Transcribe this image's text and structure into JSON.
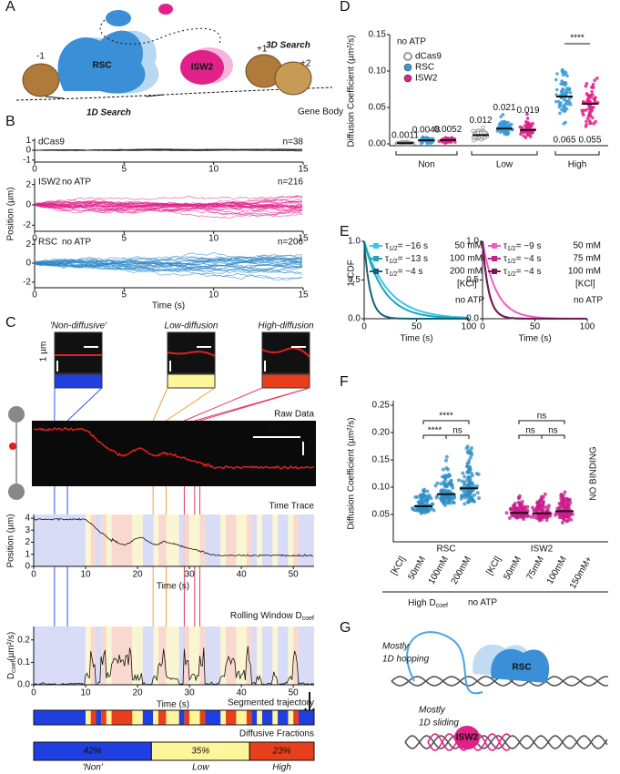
{
  "panel_labels": [
    "A",
    "B",
    "C",
    "D",
    "E",
    "F",
    "G"
  ],
  "A": {
    "search_3d": "3D Search",
    "search_1d": "1D Search",
    "rsc": "RSC",
    "isw2": "ISW2",
    "nuc_minus1": "-1",
    "nuc_plus1": "+1",
    "nuc_plus2": "+2",
    "gene_body": "Gene Body"
  },
  "B": {
    "x_label": "Time (s)",
    "y_label": "Position (µm)",
    "xlim": [
      0,
      15
    ],
    "xticks": [
      0,
      5,
      10,
      15
    ],
    "tracks": [
      {
        "name": "dCas9",
        "n": "n=38",
        "color": "#111111",
        "ylim": [
          -1.2,
          1.2
        ],
        "yticks": [
          -1,
          0,
          1
        ]
      },
      {
        "name": "ISW2",
        "condition": "no ATP",
        "n": "n=216",
        "color": "#e0218a",
        "ylim": [
          -2.6,
          2.6
        ],
        "yticks": [
          -2,
          0,
          2
        ]
      },
      {
        "name": "RSC",
        "condition": "no ATP",
        "n": "n=206",
        "color": "#2b86c8",
        "ylim": [
          -2.6,
          2.6
        ],
        "yticks": [
          -2,
          0,
          2
        ]
      }
    ]
  },
  "C": {
    "insets": [
      {
        "title": "'Non-diffusive'",
        "scale": "1 sec",
        "color": "#1f3fe0"
      },
      {
        "title": "Low-diffusion",
        "scale": "1 sec",
        "color": "#fff59a"
      },
      {
        "title": "High-diffusion",
        "scale": "1 sec",
        "color": "#e8401c"
      }
    ],
    "inset_y_scale": "1 µm",
    "raw_data": "Raw Data",
    "raw_time_scale": "10 s",
    "raw_pos_scale": "1 µm",
    "time_trace": {
      "title": "Time Trace",
      "y_label": "Position (µm)",
      "x_label": "Time (s)",
      "ylim": [
        0,
        4.3
      ],
      "yticks": [
        0,
        1,
        2,
        3,
        4
      ],
      "xlim": [
        0,
        54
      ],
      "xticks": [
        0,
        10,
        20,
        30,
        40,
        50
      ]
    },
    "rolling": {
      "title": "Rolling Window D",
      "title_sub": "coef",
      "y_label": "D",
      "y_label_sub": "coef",
      "y_label_unit": "(µm²/s)",
      "x_label": "Time (s)",
      "ylim": [
        0,
        0.26
      ],
      "yticks": [
        {
          "value": 0,
          "label": "0.0"
        },
        {
          "value": 0.1,
          "label": "0.1"
        },
        {
          "value": 0.2,
          "label": "0.2"
        }
      ],
      "xlim": [
        0,
        54
      ],
      "xticks": [
        0,
        10,
        20,
        30,
        40,
        50
      ]
    },
    "segmented": "Segmented trajectory",
    "fractions_title": "Diffusive Fractions",
    "fractions": [
      {
        "name": "'Non'",
        "value": 42,
        "value_label": "42%",
        "color": "#1f3fe0"
      },
      {
        "name": "Low",
        "value": 35,
        "value_label": "35%",
        "color": "#fff59a"
      },
      {
        "name": "High",
        "value": 23,
        "value_label": "23%",
        "color": "#e8401c"
      }
    ]
  },
  "D": {
    "no_atp": "no ATP",
    "y_label": "Diffusion Coefficient (µm²/s)",
    "ylim": [
      0,
      0.15
    ],
    "yticks": [
      {
        "value": 0,
        "label": "0.00"
      },
      {
        "value": 0.05,
        "label": "0.05"
      },
      {
        "value": 0.1,
        "label": "0.10"
      },
      {
        "value": 0.15,
        "label": "0.15"
      }
    ],
    "legend": [
      {
        "name": "dCas9",
        "color": "#9a9a9a"
      },
      {
        "name": "RSC",
        "color": "#3a9ad9"
      },
      {
        "name": "ISW2",
        "color": "#e0218a"
      }
    ],
    "groups": [
      {
        "name": "Non",
        "series": [
          0,
          1,
          2
        ],
        "medians": [
          0.0011,
          0.0048,
          0.0052
        ]
      },
      {
        "name": "Low",
        "series": [
          0,
          1,
          2
        ],
        "medians": [
          0.012,
          0.021,
          0.019
        ]
      },
      {
        "name": "High",
        "series": [
          1,
          2
        ],
        "medians": [
          0.065,
          0.055
        ]
      }
    ],
    "significance": "****"
  },
  "E": {
    "y_label": "1-CDF",
    "x_label": "Time (s)",
    "xlim": [
      0,
      100
    ],
    "xticks": [
      0,
      50,
      100
    ],
    "ylim": [
      0,
      1
    ],
    "yticks": [
      {
        "value": 0,
        "label": "0.0"
      },
      {
        "value": 0.5,
        "label": "0.5"
      },
      {
        "value": 1,
        "label": "1.0"
      }
    ],
    "tau": "τ",
    "tau_sub": "1/2",
    "unit_label": "[KCl]",
    "no_atp": "no ATP",
    "plots": [
      {
        "series": [
          {
            "half_life": 16,
            "label": "= ~16 s",
            "condition": "50 mM",
            "color": "#35c8e8"
          },
          {
            "half_life": 13,
            "label": "= ~13 s",
            "condition": "100 mM",
            "color": "#1fa3b5"
          },
          {
            "half_life": 4,
            "label": "= ~4 s",
            "condition": "200 mM",
            "color": "#0f6477"
          }
        ]
      },
      {
        "series": [
          {
            "half_life": 9,
            "label": "= ~9 s",
            "condition": "50 mM",
            "color": "#f25ac8"
          },
          {
            "half_life": 4,
            "label": "= ~4 s",
            "condition": "75 mM",
            "color": "#c81e8c"
          },
          {
            "half_life": 4,
            "label": "= ~4 s",
            "condition": "100 mM",
            "color": "#6e1a55"
          }
        ]
      }
    ]
  },
  "F": {
    "y_label": "Diffusion Coefficient (µm²/s)",
    "ylim": [
      0,
      0.25
    ],
    "yticks": [
      {
        "value": 0.05,
        "label": "0.05"
      },
      {
        "value": 0.1,
        "label": "0.10"
      },
      {
        "value": 0.15,
        "label": "0.15"
      },
      {
        "value": 0.2,
        "label": "0.20"
      },
      {
        "value": 0.25,
        "label": "0.25"
      }
    ],
    "groups": [
      {
        "name": "RSC",
        "kcl_label": "[KCl]",
        "color": "#2d8fc4",
        "conditions": [
          "50mM",
          "100mM",
          "200mM"
        ],
        "medians": [
          0.065,
          0.087,
          0.098
        ],
        "comparisons": [
          "****",
          "****",
          "ns"
        ]
      },
      {
        "name": "ISW2",
        "kcl_label": "[KCl]",
        "color": "#c81e8c",
        "conditions": [
          "50mM",
          "75mM",
          "100mM"
        ],
        "medians": [
          0.053,
          0.052,
          0.056
        ],
        "comparisons": [
          "ns",
          "ns",
          "ns"
        ]
      }
    ],
    "extra_condition": "150mM+",
    "no_binding": "NO BINDING",
    "footer": "High D",
    "footer_sub": "coef",
    "footer_rest": "no ATP"
  },
  "G": {
    "hopping": [
      "Mostly",
      "1D hopping"
    ],
    "sliding": [
      "Mostly",
      "1D sliding"
    ],
    "rsc": "RSC",
    "isw2": "ISW2"
  }
}
